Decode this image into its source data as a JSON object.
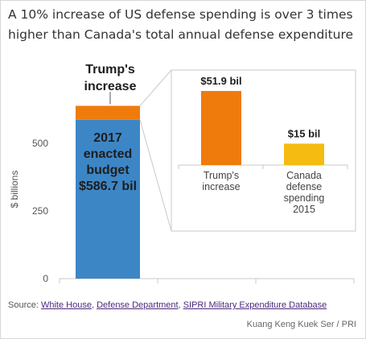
{
  "title": "A 10% increase of US defense spending is over 3 times higher than Canada's total annual defense expenditure",
  "colors": {
    "enacted": "#3d86c6",
    "increase": "#f07b0d",
    "canada": "#f5bb10",
    "axis": "#c9c9c9"
  },
  "chart_data": [
    {
      "type": "bar",
      "stacked": true,
      "ylabel": "$ billions",
      "ylim": [
        0,
        630
      ],
      "yticks": [
        0,
        250,
        500
      ],
      "segments": [
        {
          "name": "2017 enacted budget",
          "value": 586.7,
          "label_lines": [
            "2017",
            "enacted",
            "budget",
            "$586.7 bil"
          ]
        },
        {
          "name": "Trump's increase",
          "value": 51.9,
          "label_lines": [
            "Trump's",
            "increase"
          ]
        }
      ]
    },
    {
      "type": "bar",
      "categories": [
        "Trump's increase",
        "Canada defense spending 2015"
      ],
      "category_label_lines": [
        [
          "Trump's",
          "increase"
        ],
        [
          "Canada",
          "defense",
          "spending",
          "2015"
        ]
      ],
      "values": [
        51.9,
        15
      ],
      "value_labels": [
        "$51.9 bil",
        "$15 bil"
      ],
      "ylim": [
        0,
        60
      ]
    }
  ],
  "footer": {
    "source_prefix": "Source: ",
    "sources": [
      "White House",
      "Defense Department",
      "SIPRI Military Expenditure Database"
    ],
    "credit": "Kuang Keng Kuek Ser / PRI"
  }
}
